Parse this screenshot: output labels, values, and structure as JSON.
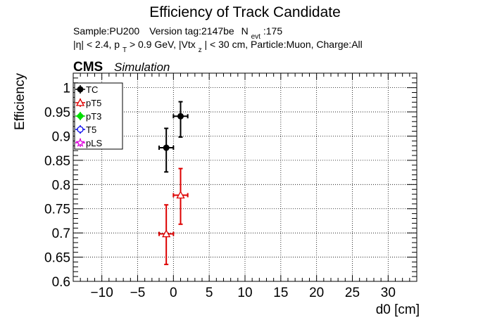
{
  "chart_data": {
    "type": "scatter",
    "title": "Efficiency of Track Candidate",
    "info_line1": {
      "sample": "Sample:PU200",
      "version": "Version tag:2147be",
      "nevt_label": "N",
      "nevt_sub": "evt",
      "nevt_value": ":175"
    },
    "info_line2": {
      "eta": "|η| < 2.4, p",
      "pt_sub": "T",
      "pt": " > 0.9 GeV, |Vtx",
      "vtx_sub": "z",
      "rest": "| < 30 cm, Particle:Muon, Charge:All"
    },
    "cms_label": "CMS",
    "simulation_label": "Simulation",
    "xlabel": "d0 [cm]",
    "ylabel": "Efficiency",
    "xlim": [
      -14,
      34
    ],
    "ylim": [
      0.6,
      1.03
    ],
    "xticks": [
      -10,
      -5,
      0,
      5,
      10,
      15,
      20,
      25,
      30
    ],
    "xtick_labels": [
      "−10",
      "−5",
      "0",
      "5",
      "10",
      "15",
      "20",
      "25",
      "30"
    ],
    "yticks": [
      0.6,
      0.65,
      0.7,
      0.75,
      0.8,
      0.85,
      0.9,
      0.95,
      1.0
    ],
    "ytick_labels": [
      "0.6",
      "0.65",
      "0.7",
      "0.75",
      "0.8",
      "0.85",
      "0.9",
      "0.95",
      "1"
    ],
    "grid": true,
    "legend_position": "top-left",
    "series": [
      {
        "name": "TC",
        "color": "#000000",
        "marker": "filled-circle",
        "points": [
          {
            "x": -1,
            "y": 0.876,
            "xerr": 1,
            "yerr_low": 0.05,
            "yerr_high": 0.04
          },
          {
            "x": 1,
            "y": 0.941,
            "xerr": 1,
            "yerr_low": 0.043,
            "yerr_high": 0.03
          }
        ]
      },
      {
        "name": "pT5",
        "color": "#dd0000",
        "marker": "open-triangle",
        "points": [
          {
            "x": -1,
            "y": 0.698,
            "xerr": 1,
            "yerr_low": 0.063,
            "yerr_high": 0.06
          },
          {
            "x": 1,
            "y": 0.778,
            "xerr": 1,
            "yerr_low": 0.06,
            "yerr_high": 0.055
          }
        ]
      },
      {
        "name": "pT3",
        "color": "#00dd00",
        "marker": "filled-diamond",
        "points": []
      },
      {
        "name": "T5",
        "color": "#0000ee",
        "marker": "open-circle",
        "points": []
      },
      {
        "name": "pLS",
        "color": "#dd00dd",
        "marker": "open-star",
        "points": []
      }
    ]
  }
}
